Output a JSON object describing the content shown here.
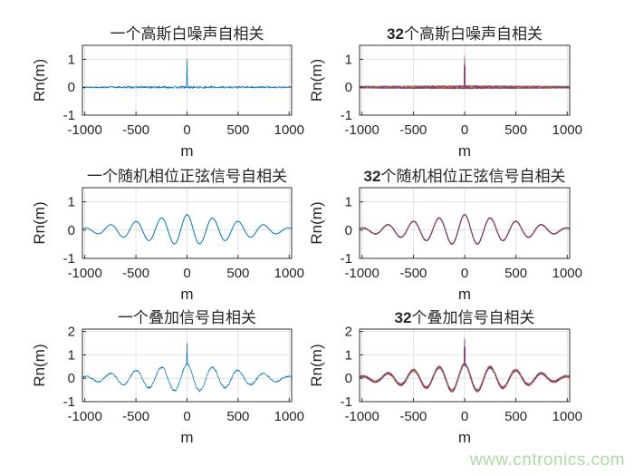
{
  "page": {
    "background": "#ffffff"
  },
  "watermark": {
    "text": "www.cntronics.com",
    "color": "#aed9a6"
  },
  "figure": {
    "axis_color": "#303030",
    "grid_color": "#e2e2e2",
    "text_color": "#262626",
    "single_trace_color": "#0072BD",
    "matlab_color_order": [
      "#0072BD",
      "#D95319",
      "#EDB120",
      "#7E2F8E",
      "#77AC30",
      "#4DBEEE",
      "#A2142F"
    ]
  },
  "chart_data": [
    {
      "type": "line",
      "position": "top-left",
      "title": "一个高斯白噪声自相关",
      "title_bold_part": "",
      "title_rest": "一个高斯白噪声自相关",
      "xlabel": "m",
      "ylabel": "Rn(m)",
      "xlim": [
        -1024,
        1024
      ],
      "ylim": [
        -1,
        1.5
      ],
      "xticks": [
        -1000,
        -500,
        0,
        500,
        1000
      ],
      "yticks": [
        -1,
        0,
        1
      ],
      "grid": true,
      "n_traces": 1,
      "signal": {
        "kind": "noise_autocorr",
        "peak_at_zero": 1.0,
        "noise_amplitude": 0.045
      }
    },
    {
      "type": "line",
      "position": "top-right",
      "title": "32个高斯白噪声自相关",
      "title_bold_part": "32",
      "title_rest": "个高斯白噪声自相关",
      "xlabel": "m",
      "ylabel": "Rn(m)",
      "xlim": [
        -1024,
        1024
      ],
      "ylim": [
        -1,
        1.5
      ],
      "xticks": [
        -1000,
        -500,
        0,
        500,
        1000
      ],
      "yticks": [
        -1,
        0,
        1
      ],
      "grid": true,
      "n_traces": 32,
      "signal": {
        "kind": "noise_autocorr",
        "peak_at_zero": 1.1,
        "noise_amplitude": 0.055
      }
    },
    {
      "type": "line",
      "position": "middle-left",
      "title": "一个随机相位正弦信号自相关",
      "title_bold_part": "",
      "title_rest": "一个随机相位正弦信号自相关",
      "xlabel": "m",
      "ylabel": "Rn(m)",
      "xlim": [
        -1024,
        1024
      ],
      "ylim": [
        -1,
        1.5
      ],
      "xticks": [
        -1000,
        -500,
        0,
        500,
        1000
      ],
      "yticks": [
        -1,
        0,
        1
      ],
      "grid": true,
      "n_traces": 1,
      "signal": {
        "kind": "sine_autocorr",
        "peak_at_zero": 0.55,
        "period": 250,
        "envelope_peaks_m": [
          0,
          250,
          500,
          750,
          1000
        ],
        "envelope_peaks_value": [
          0.55,
          0.43,
          0.31,
          0.19,
          0.07
        ],
        "trace_jitter": 0
      }
    },
    {
      "type": "line",
      "position": "middle-right",
      "title": "32个随机相位正弦信号自相关",
      "title_bold_part": "32",
      "title_rest": "个随机相位正弦信号自相关",
      "xlabel": "m",
      "ylabel": "Rn(m)",
      "xlim": [
        -1024,
        1024
      ],
      "ylim": [
        -1,
        1.5
      ],
      "xticks": [
        -1000,
        -500,
        0,
        500,
        1000
      ],
      "yticks": [
        -1,
        0,
        1
      ],
      "grid": true,
      "n_traces": 32,
      "signal": {
        "kind": "sine_autocorr",
        "peak_at_zero": 0.55,
        "period": 250,
        "envelope_peaks_m": [
          0,
          250,
          500,
          750,
          1000
        ],
        "envelope_peaks_value": [
          0.55,
          0.43,
          0.31,
          0.19,
          0.07
        ],
        "trace_jitter": 0.012
      }
    },
    {
      "type": "line",
      "position": "bottom-left",
      "title": "一个叠加信号自相关",
      "title_bold_part": "",
      "title_rest": "一个叠加信号自相关",
      "xlabel": "m",
      "ylabel": "Rn(m)",
      "xlim": [
        -1024,
        1024
      ],
      "ylim": [
        -1,
        2.1
      ],
      "xticks": [
        -1000,
        -500,
        0,
        500,
        1000
      ],
      "yticks": [
        -1,
        0,
        1,
        2
      ],
      "grid": true,
      "n_traces": 1,
      "signal": {
        "kind": "mixed_autocorr",
        "sine_peak": 0.6,
        "period": 250,
        "noise_amplitude": 0.045,
        "spike_value": 1.5
      }
    },
    {
      "type": "line",
      "position": "bottom-right",
      "title": "32个叠加信号自相关",
      "title_bold_part": "32",
      "title_rest": "个叠加信号自相关",
      "xlabel": "m",
      "ylabel": "Rn(m)",
      "xlim": [
        -1024,
        1024
      ],
      "ylim": [
        -1,
        2.1
      ],
      "xticks": [
        -1000,
        -500,
        0,
        500,
        1000
      ],
      "yticks": [
        -1,
        0,
        1,
        2
      ],
      "grid": true,
      "n_traces": 32,
      "signal": {
        "kind": "mixed_autocorr",
        "sine_peak": 0.6,
        "period": 250,
        "noise_amplitude": 0.06,
        "spike_value": 1.62
      }
    }
  ]
}
